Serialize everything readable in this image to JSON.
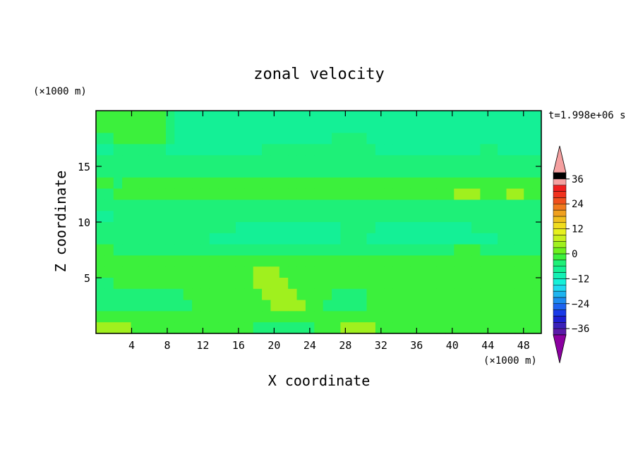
{
  "chart_data": {
    "type": "heatmap",
    "title": "zonal velocity",
    "xlabel": "X coordinate",
    "ylabel": "Z coordinate",
    "x_unit": "(×1000 m)",
    "y_unit": "(×1000 m)",
    "time_label": "t=1.998e+06 s",
    "xlim": [
      0,
      50
    ],
    "ylim": [
      0,
      20
    ],
    "x_ticks": [
      4,
      8,
      12,
      16,
      20,
      24,
      28,
      32,
      36,
      40,
      44,
      48
    ],
    "y_ticks": [
      5,
      10,
      15
    ],
    "colorbar": {
      "levels": [
        -42,
        -39,
        -36,
        -33,
        -30,
        -27,
        -24,
        -21,
        -18,
        -15,
        -12,
        -9,
        -6,
        -3,
        0,
        3,
        6,
        9,
        12,
        15,
        18,
        21,
        24,
        27,
        30,
        33,
        36,
        39,
        42
      ],
      "tick_labels": [
        36,
        24,
        12,
        0,
        -12,
        -24,
        -36
      ],
      "extend": "both",
      "colors_bottom_to_top": [
        "#8b00a0",
        "#5a1aa8",
        "#3a20b8",
        "#1e1ed2",
        "#1a3ae8",
        "#1e64f0",
        "#1e8cf0",
        "#1eb4f0",
        "#1ed8f0",
        "#14f0d8",
        "#14f0b4",
        "#14f096",
        "#1ef078",
        "#3cf03c",
        "#6ef01e",
        "#a0f01e",
        "#c8f01e",
        "#e6f01e",
        "#f0dc1e",
        "#f0c01e",
        "#f0a01e",
        "#f07a1e",
        "#f0501e",
        "#f0321e",
        "#f01e1e",
        "#f5a0a0"
      ]
    },
    "field": {
      "x": [
        0,
        1,
        2,
        3,
        4,
        5,
        6,
        7,
        8,
        9,
        10,
        11,
        12,
        13,
        14,
        15,
        16,
        17,
        18,
        19,
        20,
        21,
        22,
        23,
        24,
        25,
        26,
        27,
        28,
        29,
        30,
        31,
        32,
        33,
        34,
        35,
        36,
        37,
        38,
        39,
        40,
        41,
        42,
        43,
        44,
        45,
        46,
        47,
        48,
        49,
        50
      ],
      "z": [
        20,
        19,
        18,
        17,
        16,
        15,
        14,
        13,
        12,
        11,
        10,
        9,
        8,
        7,
        6,
        5,
        4,
        3,
        2,
        1
      ],
      "values": [
        [
          3,
          3,
          3,
          3,
          3,
          3,
          3,
          3,
          2,
          1,
          1,
          1,
          1,
          1,
          1,
          1,
          1,
          1,
          1,
          1,
          1,
          1,
          1,
          1,
          1,
          1,
          1,
          1,
          1,
          1,
          1,
          1,
          1,
          1,
          1,
          1,
          1,
          1,
          1,
          1,
          1,
          1,
          1,
          1,
          1,
          1,
          1,
          1,
          1,
          1,
          1
        ],
        [
          3,
          3,
          3,
          3,
          3,
          3,
          3,
          3,
          2,
          1,
          1,
          1,
          1,
          1,
          1,
          1,
          1,
          1,
          1,
          1,
          1,
          1,
          1,
          1,
          1,
          1,
          1,
          1,
          1,
          1,
          1,
          1,
          1,
          1,
          1,
          1,
          1,
          1,
          1,
          1,
          1,
          1,
          1,
          1,
          1,
          1,
          1,
          1,
          1,
          1,
          1
        ],
        [
          2,
          2,
          3,
          3,
          3,
          3,
          3,
          3,
          2,
          1,
          1,
          1,
          1,
          1,
          1,
          1,
          1,
          1,
          1,
          1,
          1,
          1,
          1,
          1,
          1,
          1,
          1,
          2,
          2,
          2,
          2,
          1,
          1,
          1,
          1,
          1,
          1,
          1,
          1,
          1,
          1,
          1,
          1,
          1,
          1,
          1,
          1,
          1,
          1,
          1,
          1
        ],
        [
          1,
          1,
          2,
          2,
          2,
          2,
          2,
          2,
          1,
          1,
          1,
          1,
          1,
          1,
          1,
          1,
          1,
          1,
          1,
          2,
          2,
          2,
          2,
          2,
          2,
          2,
          2,
          2,
          2,
          2,
          2,
          2,
          1,
          1,
          1,
          1,
          1,
          1,
          1,
          1,
          1,
          1,
          1,
          1,
          2,
          2,
          1,
          1,
          1,
          1,
          1
        ],
        [
          2,
          2,
          2,
          2,
          2,
          2,
          2,
          2,
          2,
          2,
          2,
          2,
          2,
          2,
          2,
          2,
          2,
          2,
          2,
          2,
          2,
          2,
          2,
          2,
          2,
          2,
          2,
          2,
          2,
          2,
          2,
          2,
          2,
          2,
          2,
          2,
          2,
          2,
          2,
          2,
          2,
          2,
          2,
          2,
          2,
          2,
          2,
          2,
          2,
          2,
          2
        ],
        [
          2,
          2,
          2,
          2,
          2,
          2,
          2,
          2,
          2,
          2,
          2,
          2,
          2,
          2,
          2,
          2,
          2,
          2,
          2,
          2,
          2,
          2,
          2,
          2,
          2,
          2,
          2,
          2,
          2,
          2,
          2,
          2,
          2,
          2,
          2,
          2,
          2,
          2,
          2,
          2,
          2,
          2,
          2,
          2,
          2,
          2,
          2,
          2,
          2,
          2,
          2
        ],
        [
          3,
          3,
          2,
          3,
          3,
          3,
          3,
          3,
          3,
          3,
          3,
          3,
          3,
          3,
          3,
          3,
          3,
          3,
          3,
          3,
          3,
          3,
          3,
          3,
          3,
          3,
          3,
          3,
          3,
          3,
          3,
          3,
          3,
          3,
          3,
          3,
          3,
          3,
          3,
          3,
          3,
          3,
          3,
          3,
          3,
          3,
          3,
          3,
          3,
          3,
          3
        ],
        [
          2,
          2,
          3,
          3,
          3,
          3,
          3,
          3,
          3,
          3,
          3,
          3,
          3,
          3,
          3,
          3,
          3,
          3,
          3,
          3,
          3,
          3,
          3,
          3,
          3,
          3,
          3,
          3,
          3,
          3,
          3,
          3,
          3,
          3,
          3,
          3,
          3,
          3,
          3,
          3,
          3,
          4,
          4,
          4,
          3,
          3,
          3,
          4,
          4,
          3,
          3
        ],
        [
          2,
          2,
          2,
          2,
          2,
          2,
          2,
          2,
          2,
          2,
          2,
          2,
          2,
          2,
          2,
          2,
          2,
          2,
          2,
          2,
          2,
          2,
          2,
          2,
          2,
          2,
          2,
          2,
          2,
          2,
          2,
          2,
          2,
          2,
          2,
          2,
          2,
          2,
          2,
          2,
          2,
          2,
          2,
          2,
          2,
          2,
          2,
          2,
          2,
          2,
          2
        ],
        [
          1,
          1,
          2,
          2,
          2,
          2,
          2,
          2,
          2,
          2,
          2,
          2,
          2,
          2,
          2,
          2,
          2,
          2,
          2,
          2,
          2,
          2,
          2,
          2,
          2,
          2,
          2,
          2,
          2,
          2,
          2,
          2,
          2,
          2,
          2,
          2,
          2,
          2,
          2,
          2,
          2,
          2,
          2,
          2,
          2,
          2,
          2,
          2,
          2,
          2,
          2
        ],
        [
          2,
          2,
          2,
          2,
          2,
          2,
          2,
          2,
          2,
          2,
          2,
          2,
          2,
          2,
          2,
          2,
          1,
          1,
          1,
          1,
          1,
          1,
          1,
          1,
          1,
          1,
          1,
          1,
          2,
          2,
          2,
          2,
          1,
          1,
          1,
          1,
          1,
          1,
          1,
          1,
          1,
          1,
          1,
          2,
          2,
          2,
          2,
          2,
          2,
          2,
          2
        ],
        [
          2,
          2,
          2,
          2,
          2,
          2,
          2,
          2,
          2,
          2,
          2,
          2,
          2,
          1,
          1,
          1,
          1,
          1,
          1,
          1,
          1,
          1,
          1,
          1,
          1,
          1,
          1,
          1,
          2,
          2,
          2,
          1,
          1,
          1,
          1,
          1,
          1,
          1,
          1,
          1,
          1,
          1,
          1,
          1,
          1,
          1,
          2,
          2,
          2,
          2,
          2
        ],
        [
          3,
          3,
          2,
          2,
          2,
          2,
          2,
          2,
          2,
          2,
          2,
          2,
          2,
          2,
          2,
          2,
          2,
          2,
          2,
          2,
          2,
          2,
          2,
          2,
          2,
          2,
          2,
          2,
          2,
          2,
          2,
          2,
          2,
          2,
          2,
          2,
          2,
          2,
          2,
          2,
          2,
          3,
          3,
          3,
          2,
          2,
          2,
          2,
          2,
          2,
          2
        ],
        [
          3,
          3,
          3,
          3,
          3,
          3,
          3,
          3,
          3,
          3,
          3,
          3,
          3,
          3,
          3,
          3,
          3,
          3,
          3,
          3,
          3,
          3,
          3,
          3,
          3,
          3,
          3,
          3,
          3,
          3,
          3,
          3,
          3,
          3,
          3,
          3,
          3,
          3,
          3,
          3,
          3,
          3,
          3,
          3,
          3,
          3,
          3,
          3,
          3,
          3,
          3
        ],
        [
          3,
          3,
          3,
          3,
          3,
          3,
          3,
          3,
          3,
          3,
          3,
          3,
          3,
          3,
          3,
          3,
          3,
          3,
          4,
          4,
          4,
          3,
          3,
          3,
          3,
          3,
          3,
          3,
          3,
          3,
          3,
          3,
          3,
          3,
          3,
          3,
          3,
          3,
          3,
          3,
          3,
          3,
          3,
          3,
          3,
          3,
          3,
          3,
          3,
          3,
          3
        ],
        [
          2,
          2,
          3,
          3,
          3,
          3,
          3,
          3,
          3,
          3,
          3,
          3,
          3,
          3,
          3,
          3,
          3,
          3,
          4,
          4,
          4,
          4,
          3,
          3,
          3,
          3,
          3,
          3,
          3,
          3,
          3,
          3,
          3,
          3,
          3,
          3,
          3,
          3,
          3,
          3,
          3,
          3,
          3,
          3,
          3,
          3,
          3,
          3,
          3,
          3,
          3
        ],
        [
          2,
          2,
          2,
          2,
          2,
          2,
          2,
          2,
          2,
          2,
          3,
          3,
          3,
          3,
          3,
          3,
          3,
          3,
          3,
          4,
          4,
          4,
          4,
          3,
          3,
          3,
          3,
          2,
          2,
          2,
          2,
          3,
          3,
          3,
          3,
          3,
          3,
          3,
          3,
          3,
          3,
          3,
          3,
          3,
          3,
          3,
          3,
          3,
          3,
          3,
          3
        ],
        [
          2,
          2,
          2,
          2,
          2,
          2,
          2,
          2,
          2,
          2,
          2,
          3,
          3,
          3,
          3,
          3,
          3,
          3,
          3,
          3,
          4,
          4,
          4,
          4,
          3,
          3,
          2,
          2,
          2,
          2,
          2,
          3,
          3,
          3,
          3,
          3,
          3,
          3,
          3,
          3,
          3,
          3,
          3,
          3,
          3,
          3,
          3,
          3,
          3,
          3,
          3
        ],
        [
          3,
          3,
          3,
          3,
          3,
          3,
          3,
          3,
          3,
          3,
          3,
          3,
          3,
          3,
          3,
          3,
          3,
          3,
          3,
          3,
          3,
          3,
          3,
          3,
          3,
          3,
          3,
          3,
          3,
          3,
          3,
          3,
          3,
          3,
          3,
          3,
          3,
          3,
          3,
          3,
          3,
          3,
          3,
          3,
          3,
          3,
          3,
          3,
          3,
          3,
          3
        ],
        [
          4,
          4,
          4,
          4,
          3,
          3,
          3,
          3,
          3,
          3,
          3,
          3,
          3,
          3,
          3,
          3,
          3,
          3,
          2,
          2,
          2,
          2,
          2,
          2,
          2,
          3,
          3,
          3,
          4,
          4,
          4,
          4,
          3,
          3,
          3,
          3,
          3,
          3,
          3,
          3,
          3,
          3,
          3,
          3,
          3,
          3,
          3,
          3,
          3,
          3,
          3
        ]
      ]
    }
  }
}
